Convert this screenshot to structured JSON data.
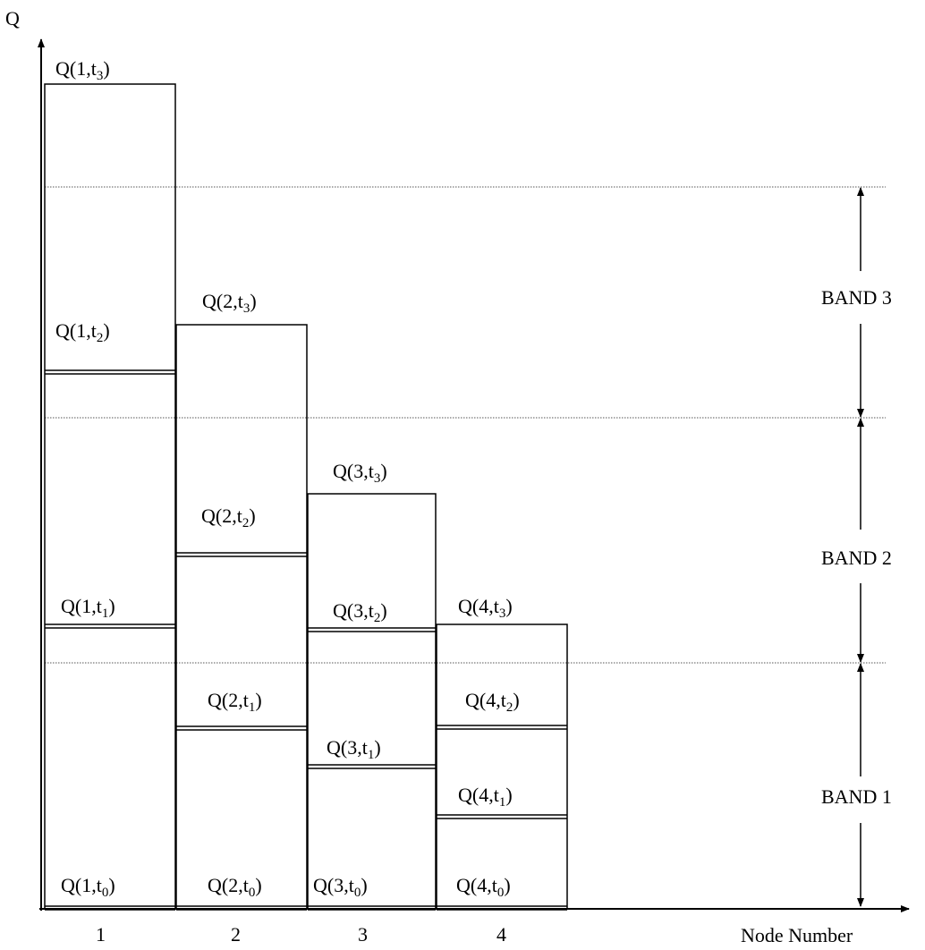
{
  "axes": {
    "y_label": "Q",
    "x_label": "Node Number",
    "x_ticks": [
      "1",
      "2",
      "3",
      "4"
    ]
  },
  "bands": [
    {
      "label": "BAND 3"
    },
    {
      "label": "BAND 2"
    },
    {
      "label": "BAND 1"
    }
  ],
  "nodes": [
    {
      "node": "1",
      "levels": [
        {
          "prefix": "Q(1,t",
          "sub": "0",
          "suffix": ")"
        },
        {
          "prefix": "Q(1,t",
          "sub": "1",
          "suffix": ")"
        },
        {
          "prefix": "Q(1,t",
          "sub": "2",
          "suffix": ")"
        },
        {
          "prefix": "Q(1,t",
          "sub": "3",
          "suffix": ")"
        }
      ]
    },
    {
      "node": "2",
      "levels": [
        {
          "prefix": "Q(2,t",
          "sub": "0",
          "suffix": ")"
        },
        {
          "prefix": "Q(2,t",
          "sub": "1",
          "suffix": ")"
        },
        {
          "prefix": "Q(2,t",
          "sub": "2",
          "suffix": ")"
        },
        {
          "prefix": "Q(2,t",
          "sub": "3",
          "suffix": ")"
        }
      ]
    },
    {
      "node": "3",
      "levels": [
        {
          "prefix": "Q(3,t",
          "sub": "0",
          "suffix": ")"
        },
        {
          "prefix": "Q(3,t",
          "sub": "1",
          "suffix": ")"
        },
        {
          "prefix": "Q(3,t",
          "sub": "2",
          "suffix": ")"
        },
        {
          "prefix": "Q(3,t",
          "sub": "3",
          "suffix": ")"
        }
      ]
    },
    {
      "node": "4",
      "levels": [
        {
          "prefix": "Q(4,t",
          "sub": "0",
          "suffix": ")"
        },
        {
          "prefix": "Q(4,t",
          "sub": "1",
          "suffix": ")"
        },
        {
          "prefix": "Q(4,t",
          "sub": "2",
          "suffix": ")"
        },
        {
          "prefix": "Q(4,t",
          "sub": "3",
          "suffix": ")"
        }
      ]
    }
  ]
}
